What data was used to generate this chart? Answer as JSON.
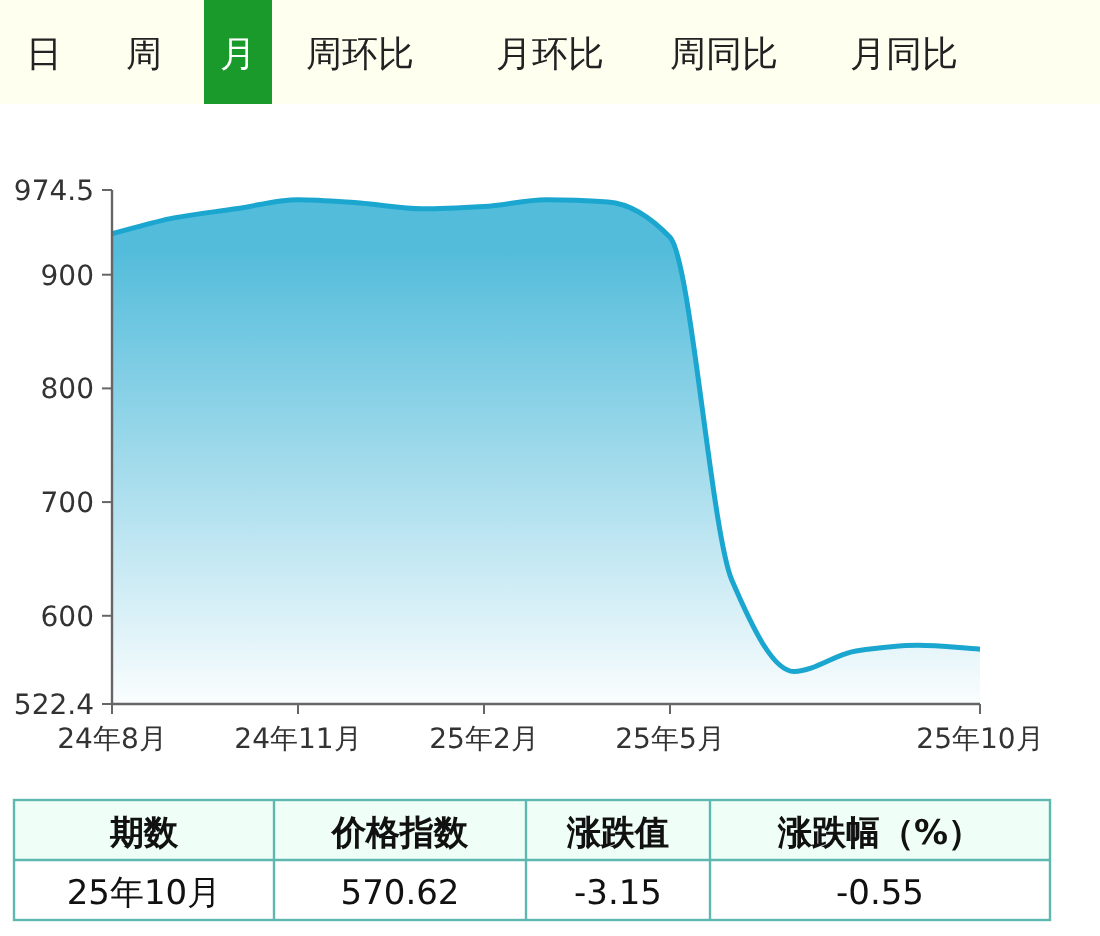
{
  "chart_data": {
    "type": "area",
    "categories": [
      "24年8月",
      null,
      null,
      "24年11月",
      null,
      null,
      "25年2月",
      null,
      null,
      "25年5月",
      null,
      null,
      null,
      null,
      "25年10月"
    ],
    "values": [
      936,
      950,
      958,
      966,
      963,
      958,
      960,
      966,
      964,
      933,
      631,
      551,
      569,
      574,
      570.62
    ],
    "color": "#1aa6cf",
    "ylim": [
      522.4,
      974.5
    ],
    "yticks": [
      522.4,
      600,
      700,
      800,
      900,
      974.5
    ],
    "annotations": [
      "日",
      "周",
      "月",
      "周环比",
      "月环比",
      "周同比",
      "月同比",
      "期数",
      "价格指数",
      "涨跌值",
      "涨跌幅（%）",
      "25年10月",
      "570.62",
      "-3.15",
      "-0.55"
    ]
  }
}
